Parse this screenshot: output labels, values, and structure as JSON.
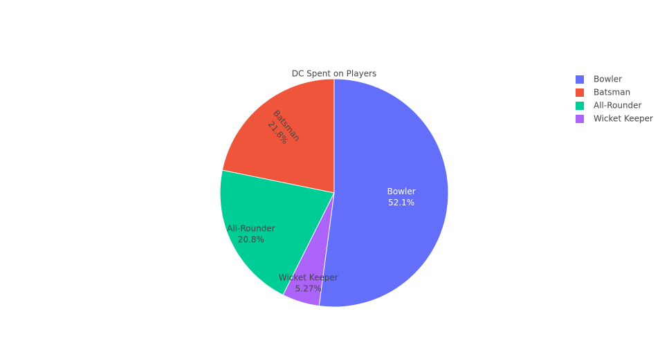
{
  "chart_data": {
    "type": "pie",
    "title": "DC Spent on Players",
    "categories": [
      "Bowler",
      "Batsman",
      "All-Rounder",
      "Wicket Keeper"
    ],
    "values": [
      52.1,
      21.8,
      20.8,
      5.27
    ],
    "value_labels": [
      "52.1%",
      "21.8%",
      "20.8%",
      "5.27%"
    ],
    "colors": [
      "#636efa",
      "#ef553b",
      "#00cc96",
      "#ab63fa"
    ],
    "legend": "top-right"
  }
}
